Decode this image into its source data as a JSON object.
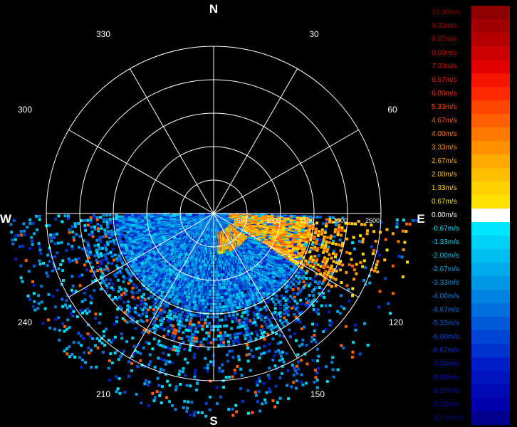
{
  "cardinals": {
    "north": "N",
    "east": "E",
    "south": "S",
    "west": "W"
  },
  "bearings": [
    "30",
    "60",
    "120",
    "150",
    "210",
    "240",
    "300",
    "330"
  ],
  "range_labels": [
    "500",
    "1000",
    "1500",
    "2000",
    "2500"
  ],
  "legend": {
    "items": [
      {
        "label": "10.00m/s",
        "color": "#8c0000"
      },
      {
        "label": "9.33m/s",
        "color": "#a00000"
      },
      {
        "label": "8.67m/s",
        "color": "#b40000"
      },
      {
        "label": "8.00m/s",
        "color": "#cc0000"
      },
      {
        "label": "7.33m/s",
        "color": "#e00000"
      },
      {
        "label": "6.67m/s",
        "color": "#f51400"
      },
      {
        "label": "6.00m/s",
        "color": "#ff2800"
      },
      {
        "label": "5.33m/s",
        "color": "#ff4600"
      },
      {
        "label": "4.67m/s",
        "color": "#ff5f00"
      },
      {
        "label": "4.00m/s",
        "color": "#ff7800"
      },
      {
        "label": "3.33m/s",
        "color": "#ff9100"
      },
      {
        "label": "2.67m/s",
        "color": "#ffaa00"
      },
      {
        "label": "2.00m/s",
        "color": "#ffbe00"
      },
      {
        "label": "1.33m/s",
        "color": "#ffd200"
      },
      {
        "label": "0.67m/s",
        "color": "#ffe100"
      },
      {
        "label": "0.00m/s",
        "color": "#ffffff"
      },
      {
        "label": "-0.67m/s",
        "color": "#00e6ff"
      },
      {
        "label": "-1.33m/s",
        "color": "#00d2f5"
      },
      {
        "label": "-2.00m/s",
        "color": "#00bef0"
      },
      {
        "label": "-2.67m/s",
        "color": "#00aaeb"
      },
      {
        "label": "-3.33m/s",
        "color": "#0096e6"
      },
      {
        "label": "-4.00m/s",
        "color": "#0082e1"
      },
      {
        "label": "-4.67m/s",
        "color": "#006edc"
      },
      {
        "label": "-5.33m/s",
        "color": "#005ad7"
      },
      {
        "label": "-6.00m/s",
        "color": "#0046d2"
      },
      {
        "label": "-6.67m/s",
        "color": "#0032cd"
      },
      {
        "label": "-7.33m/s",
        "color": "#001ec8"
      },
      {
        "label": "-8.00m/s",
        "color": "#0014be"
      },
      {
        "label": "-8.67m/s",
        "color": "#000ab4"
      },
      {
        "label": "-9.33m/s",
        "color": "#0000aa"
      },
      {
        "label": "-10.00m/s",
        "color": "#00008c"
      }
    ]
  }
}
